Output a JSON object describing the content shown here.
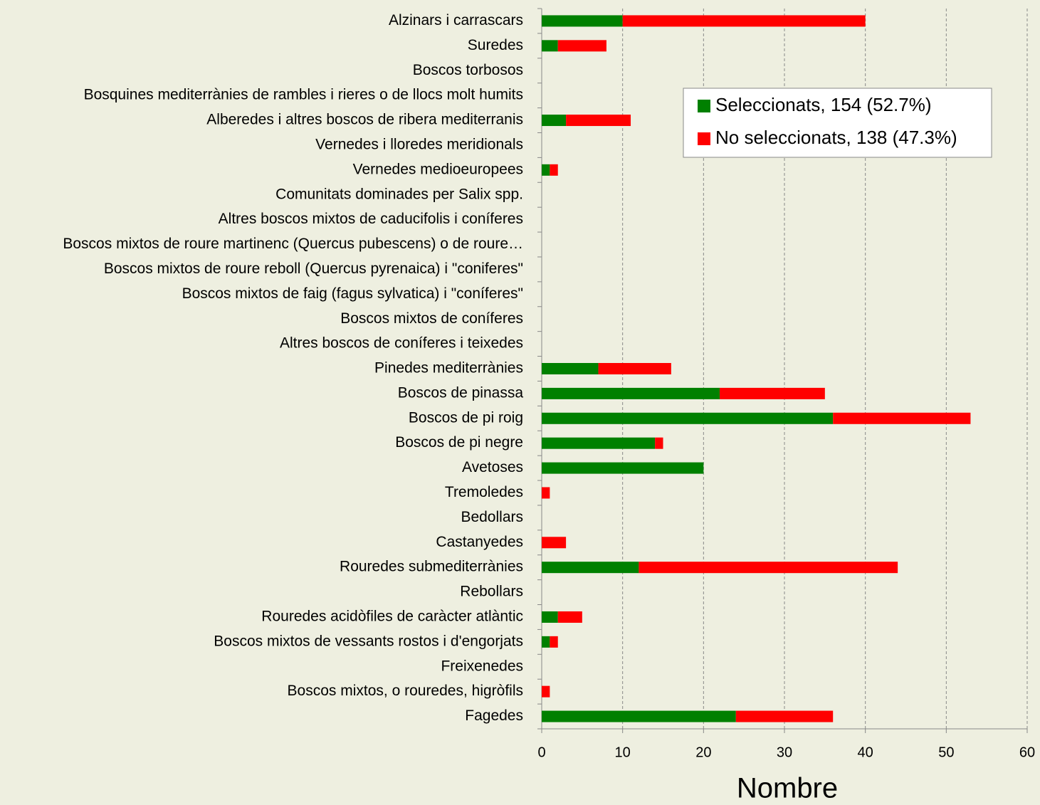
{
  "chart_data": {
    "type": "stacked_barh",
    "x_label": "Nombre",
    "categories": [
      "Alzinars i carrascars",
      "Suredes",
      "Boscos torbosos",
      "Bosquines mediterrànies de rambles i rieres o de llocs molt humits",
      "Alberedes i altres boscos de ribera mediterranis",
      "Vernedes i lloredes meridionals",
      "Vernedes medioeuropees",
      "Comunitats dominades per Salix spp.",
      "Altres boscos mixtos de caducifolis i coníferes",
      "Boscos mixtos de roure martinenc (Quercus pubescens) o de roure…",
      "Boscos mixtos de roure reboll (Quercus pyrenaica) i \"coniferes\"",
      "Boscos mixtos de faig (fagus sylvatica) i \"coníferes\"",
      "Boscos mixtos de coníferes",
      "Altres boscos de coníferes i teixedes",
      "Pinedes mediterrànies",
      "Boscos de pinassa",
      "Boscos de pi roig",
      "Boscos de pi negre",
      "Avetoses",
      "Tremoledes",
      "Bedollars",
      "Castanyedes",
      "Rouredes submediterrànies",
      "Rebollars",
      "Rouredes acidòfiles de caràcter atlàntic",
      "Boscos mixtos de vessants rostos i d'engorjats",
      "Freixenedes",
      "Boscos mixtos, o rouredes, higròfils",
      "Fagedes"
    ],
    "series": [
      {
        "name": "Seleccionats, 154 (52.7%)",
        "color": "#008000",
        "values": [
          10,
          2,
          0,
          0,
          3,
          0,
          1,
          0,
          0,
          0,
          0,
          0,
          0,
          0,
          7,
          22,
          36,
          14,
          20,
          0,
          0,
          0,
          12,
          0,
          2,
          1,
          0,
          0,
          24
        ]
      },
      {
        "name": "No seleccionats, 138 (47.3%)",
        "color": "#ff0000",
        "values": [
          30,
          6,
          0,
          0,
          8,
          0,
          1,
          0,
          0,
          0,
          0,
          0,
          0,
          0,
          9,
          13,
          17,
          1,
          0,
          1,
          0,
          3,
          32,
          0,
          3,
          1,
          0,
          1,
          12
        ]
      }
    ],
    "xlim": [
      0,
      60
    ],
    "xticks": [
      0,
      10,
      20,
      30,
      40,
      50,
      60
    ],
    "grid": true,
    "legend": "upper right"
  }
}
